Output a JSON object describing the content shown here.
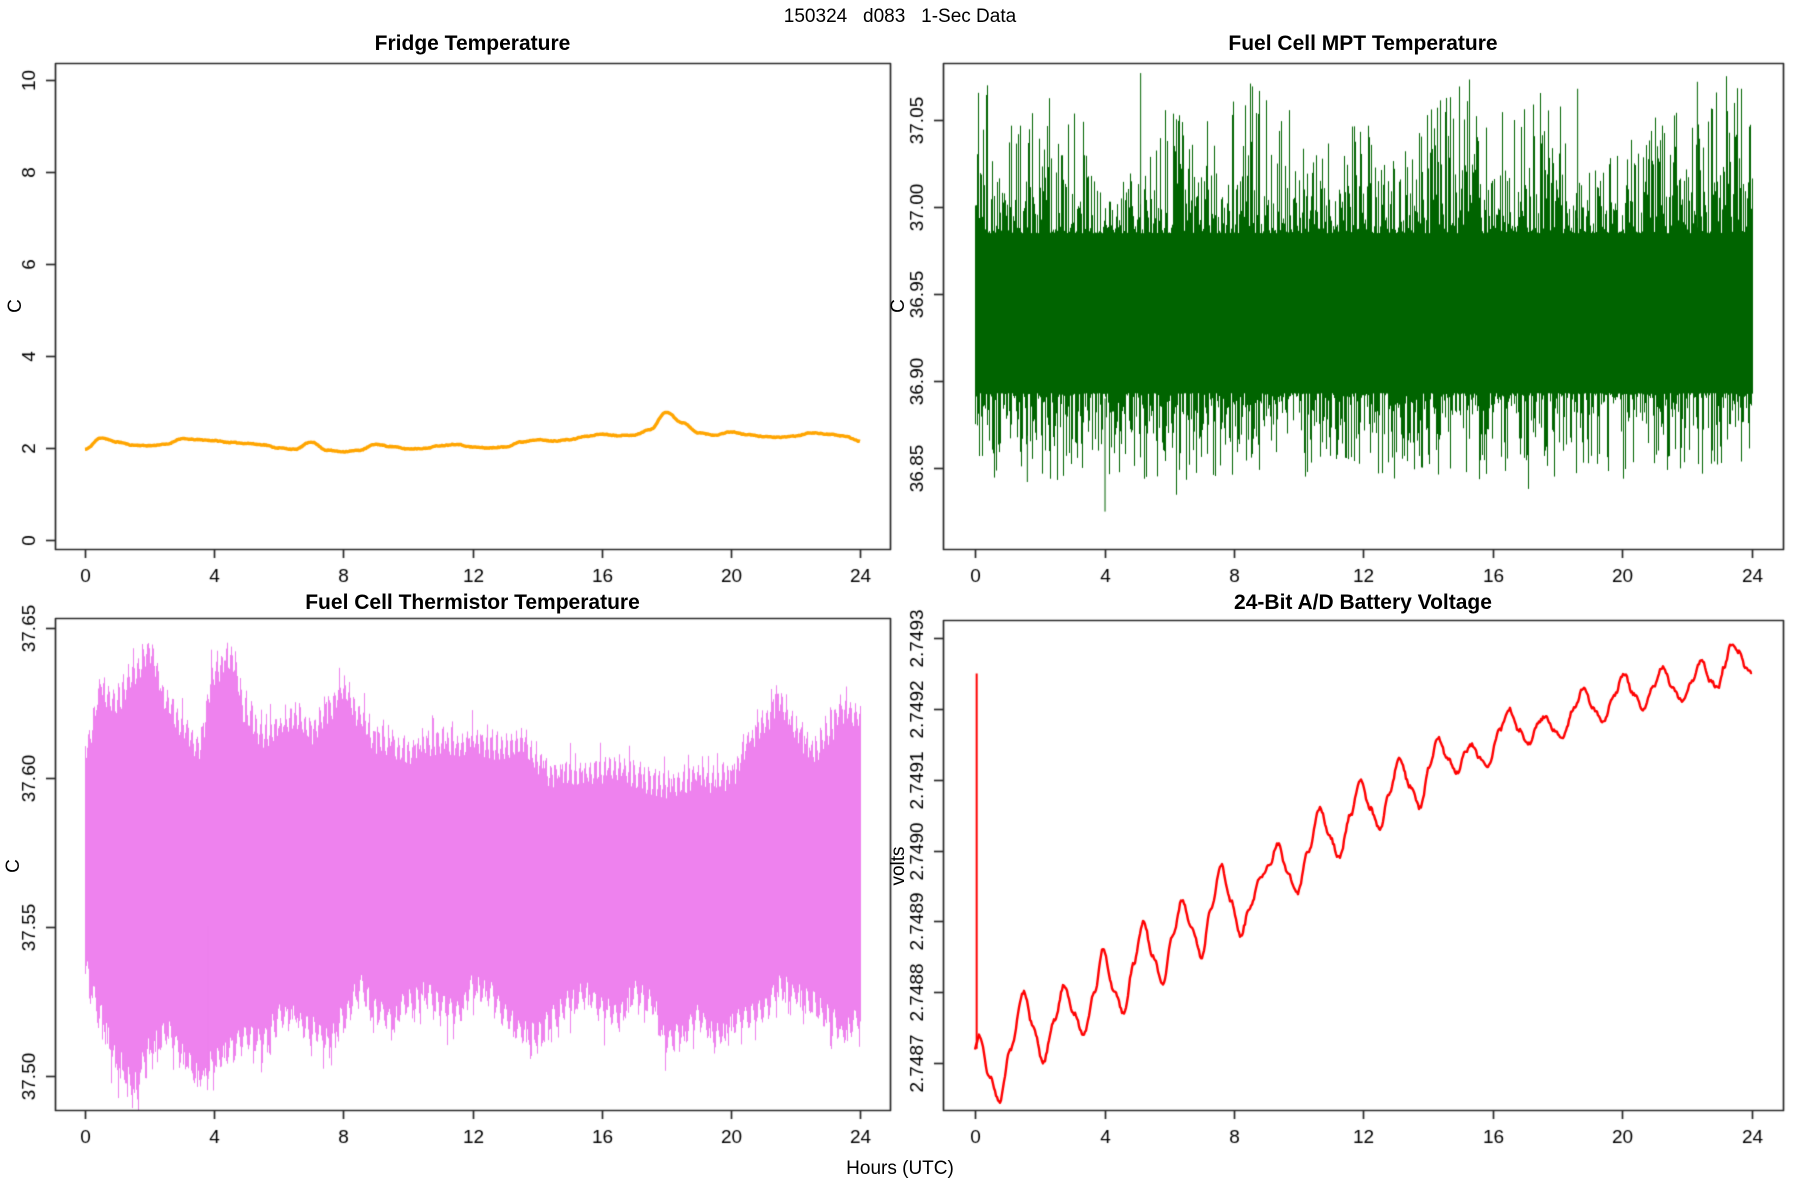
{
  "main": {
    "title": "150324   d083   1-Sec Data",
    "xlabel": "Hours (UTC)"
  },
  "chart_data": [
    {
      "type": "line",
      "title": "Fridge Temperature",
      "ylabel": "C",
      "color": "#FFA500",
      "x_ticks": [
        0,
        4,
        8,
        12,
        16,
        20,
        24
      ],
      "x_tick_labels": [
        "0",
        "4",
        "8",
        "12",
        "16",
        "20",
        "24"
      ],
      "y_ticks": [
        0,
        2,
        4,
        6,
        8,
        10
      ],
      "y_tick_labels": [
        "0",
        "2",
        "4",
        "6",
        "8",
        "10"
      ],
      "xlim": [
        -0.93,
        24.93
      ],
      "ylim": [
        -0.196,
        10.369
      ],
      "x_step_hours": 0.5,
      "values": [
        1.97,
        2.22,
        2.13,
        2.06,
        2.05,
        2.08,
        2.2,
        2.18,
        2.16,
        2.12,
        2.1,
        2.07,
        2.0,
        1.97,
        2.13,
        1.95,
        1.92,
        1.95,
        2.08,
        2.03,
        1.98,
        1.99,
        2.05,
        2.08,
        2.02,
        2.0,
        2.02,
        2.13,
        2.18,
        2.15,
        2.18,
        2.25,
        2.3,
        2.27,
        2.28,
        2.4,
        2.78,
        2.55,
        2.33,
        2.28,
        2.35,
        2.29,
        2.25,
        2.23,
        2.26,
        2.33,
        2.3,
        2.26,
        2.15
      ],
      "noise_amplitude": 0.018,
      "noise_seed": 11
    },
    {
      "type": "line",
      "render_hint": "dense-noise-band",
      "title": "Fuel Cell MPT Temperature",
      "ylabel": "C",
      "color": "#006400",
      "x_ticks": [
        0,
        4,
        8,
        12,
        16,
        20,
        24
      ],
      "x_tick_labels": [
        "0",
        "4",
        "8",
        "12",
        "16",
        "20",
        "24"
      ],
      "y_ticks": [
        36.85,
        36.9,
        36.95,
        37.0,
        37.05
      ],
      "y_tick_labels": [
        "36.85",
        "36.90",
        "36.95",
        "37.00",
        "37.05"
      ],
      "xlim": [
        -0.99,
        24.96
      ],
      "ylim": [
        36.8035,
        37.0828
      ],
      "mean": 36.93,
      "solid_core_band": [
        36.903,
        36.974
      ],
      "typical_band": [
        36.87,
        36.995
      ],
      "spike_max": 37.077,
      "spike_min": 36.815,
      "extreme_points": [
        {
          "x": 4.0,
          "y": 36.825
        },
        {
          "x": 5.1,
          "y": 37.077
        },
        {
          "x": 22.3,
          "y": 37.072
        },
        {
          "x": 1.6,
          "y": 36.842
        },
        {
          "x": 18.6,
          "y": 37.068
        }
      ],
      "noise_seed": 150324
    },
    {
      "type": "line",
      "render_hint": "dense-noise-band",
      "title": "Fuel Cell Thermistor Temperature",
      "ylabel": "C",
      "color": "#EE82EE",
      "x_ticks": [
        0,
        4,
        8,
        12,
        16,
        20,
        24
      ],
      "x_tick_labels": [
        "0",
        "4",
        "8",
        "12",
        "16",
        "20",
        "24"
      ],
      "y_ticks": [
        37.5,
        37.55,
        37.6,
        37.65
      ],
      "y_tick_labels": [
        "37.50",
        "37.55",
        "37.60",
        "37.65"
      ],
      "xlim": [
        -0.93,
        24.93
      ],
      "ylim": [
        37.4886,
        37.6535
      ],
      "x_step_hours": 0.5,
      "upper_envelope": [
        37.61,
        37.628,
        37.625,
        37.635,
        37.642,
        37.625,
        37.617,
        37.61,
        37.635,
        37.64,
        37.62,
        37.614,
        37.616,
        37.62,
        37.615,
        37.622,
        37.629,
        37.62,
        37.612,
        37.61,
        37.608,
        37.61,
        37.612,
        37.61,
        37.612,
        37.61,
        37.61,
        37.612,
        37.605,
        37.6,
        37.601,
        37.601,
        37.602,
        37.603,
        37.6,
        37.598,
        37.597,
        37.598,
        37.6,
        37.598,
        37.6,
        37.61,
        37.618,
        37.625,
        37.615,
        37.607,
        37.615,
        37.622,
        37.62
      ],
      "lower_envelope": [
        37.535,
        37.52,
        37.505,
        37.497,
        37.51,
        37.515,
        37.508,
        37.501,
        37.505,
        37.51,
        37.513,
        37.512,
        37.52,
        37.522,
        37.516,
        37.513,
        37.52,
        37.53,
        37.522,
        37.52,
        37.525,
        37.528,
        37.524,
        37.521,
        37.53,
        37.528,
        37.52,
        37.515,
        37.514,
        37.52,
        37.525,
        37.528,
        37.523,
        37.52,
        37.528,
        37.525,
        37.512,
        37.515,
        37.52,
        37.514,
        37.518,
        37.52,
        37.522,
        37.53,
        37.528,
        37.525,
        37.52,
        37.515,
        37.52
      ],
      "deep_spikes": [
        {
          "x": 1.3,
          "y": 37.493
        },
        {
          "x": 3.8,
          "y": 37.499
        }
      ],
      "noise_seed": 83
    },
    {
      "type": "line",
      "title": "24-Bit A/D Battery Voltage",
      "ylabel": "volts",
      "color": "#FF0000",
      "x_ticks": [
        0,
        4,
        8,
        12,
        16,
        20,
        24
      ],
      "x_tick_labels": [
        "0",
        "4",
        "8",
        "12",
        "16",
        "20",
        "24"
      ],
      "y_ticks": [
        2.7487,
        2.7488,
        2.7489,
        2.749,
        2.7491,
        2.7492,
        2.7493
      ],
      "y_tick_labels": [
        "2.7487",
        "2.7488",
        "2.7489",
        "2.7490",
        "2.7491",
        "2.7492",
        "2.7493"
      ],
      "xlim": [
        -0.99,
        24.96
      ],
      "ylim": [
        2.7486336,
        2.7493256
      ],
      "startup_spike": {
        "x": 0.05,
        "bottom": 2.74872,
        "top": 2.74925
      },
      "keypoints": [
        [
          0,
          2.74872
        ],
        [
          0.12,
          2.74874
        ],
        [
          0.45,
          2.74868
        ],
        [
          0.75,
          2.748645
        ],
        [
          1.1,
          2.74872
        ],
        [
          1.5,
          2.7488
        ],
        [
          1.8,
          2.74875
        ],
        [
          2.1,
          2.7487
        ],
        [
          2.45,
          2.74876
        ],
        [
          2.75,
          2.74881
        ],
        [
          3.05,
          2.74877
        ],
        [
          3.35,
          2.74874
        ],
        [
          3.7,
          2.7488
        ],
        [
          3.95,
          2.74886
        ],
        [
          4.3,
          2.7488
        ],
        [
          4.6,
          2.74877
        ],
        [
          4.9,
          2.74884
        ],
        [
          5.2,
          2.7489
        ],
        [
          5.5,
          2.74885
        ],
        [
          5.8,
          2.74881
        ],
        [
          6.1,
          2.74888
        ],
        [
          6.4,
          2.74893
        ],
        [
          6.7,
          2.74889
        ],
        [
          7,
          2.74885
        ],
        [
          7.3,
          2.74892
        ],
        [
          7.6,
          2.74898
        ],
        [
          7.9,
          2.74893
        ],
        [
          8.2,
          2.74888
        ],
        [
          8.5,
          2.74892
        ],
        [
          8.8,
          2.74896
        ],
        [
          9.1,
          2.74898
        ],
        [
          9.35,
          2.74901
        ],
        [
          9.65,
          2.74897
        ],
        [
          9.95,
          2.74894
        ],
        [
          10.3,
          2.749
        ],
        [
          10.65,
          2.74906
        ],
        [
          10.95,
          2.74902
        ],
        [
          11.25,
          2.74899
        ],
        [
          11.6,
          2.74905
        ],
        [
          11.9,
          2.7491
        ],
        [
          12.2,
          2.74906
        ],
        [
          12.5,
          2.74903
        ],
        [
          12.8,
          2.74908
        ],
        [
          13.1,
          2.74913
        ],
        [
          13.45,
          2.74909
        ],
        [
          13.75,
          2.74906
        ],
        [
          14.05,
          2.74912
        ],
        [
          14.3,
          2.74916
        ],
        [
          14.6,
          2.74913
        ],
        [
          14.9,
          2.74911
        ],
        [
          15.15,
          2.74914
        ],
        [
          15.35,
          2.74915
        ],
        [
          15.6,
          2.74913
        ],
        [
          15.85,
          2.74912
        ],
        [
          16.2,
          2.74917
        ],
        [
          16.5,
          2.7492
        ],
        [
          16.8,
          2.74917
        ],
        [
          17.1,
          2.74915
        ],
        [
          17.4,
          2.74918
        ],
        [
          17.6,
          2.74919
        ],
        [
          17.9,
          2.74917
        ],
        [
          18.15,
          2.74916
        ],
        [
          18.5,
          2.7492
        ],
        [
          18.8,
          2.74923
        ],
        [
          19.1,
          2.7492
        ],
        [
          19.4,
          2.74918
        ],
        [
          19.75,
          2.74922
        ],
        [
          20.05,
          2.74925
        ],
        [
          20.35,
          2.74922
        ],
        [
          20.65,
          2.7492
        ],
        [
          20.95,
          2.74923
        ],
        [
          21.25,
          2.74926
        ],
        [
          21.55,
          2.74923
        ],
        [
          21.85,
          2.74921
        ],
        [
          22.15,
          2.74924
        ],
        [
          22.45,
          2.74927
        ],
        [
          22.7,
          2.74924
        ],
        [
          22.95,
          2.74923
        ],
        [
          23.15,
          2.74926
        ],
        [
          23.35,
          2.74929
        ],
        [
          23.6,
          2.74928
        ],
        [
          23.8,
          2.74926
        ],
        [
          24,
          2.74925
        ]
      ],
      "noise_seed": 24
    }
  ]
}
